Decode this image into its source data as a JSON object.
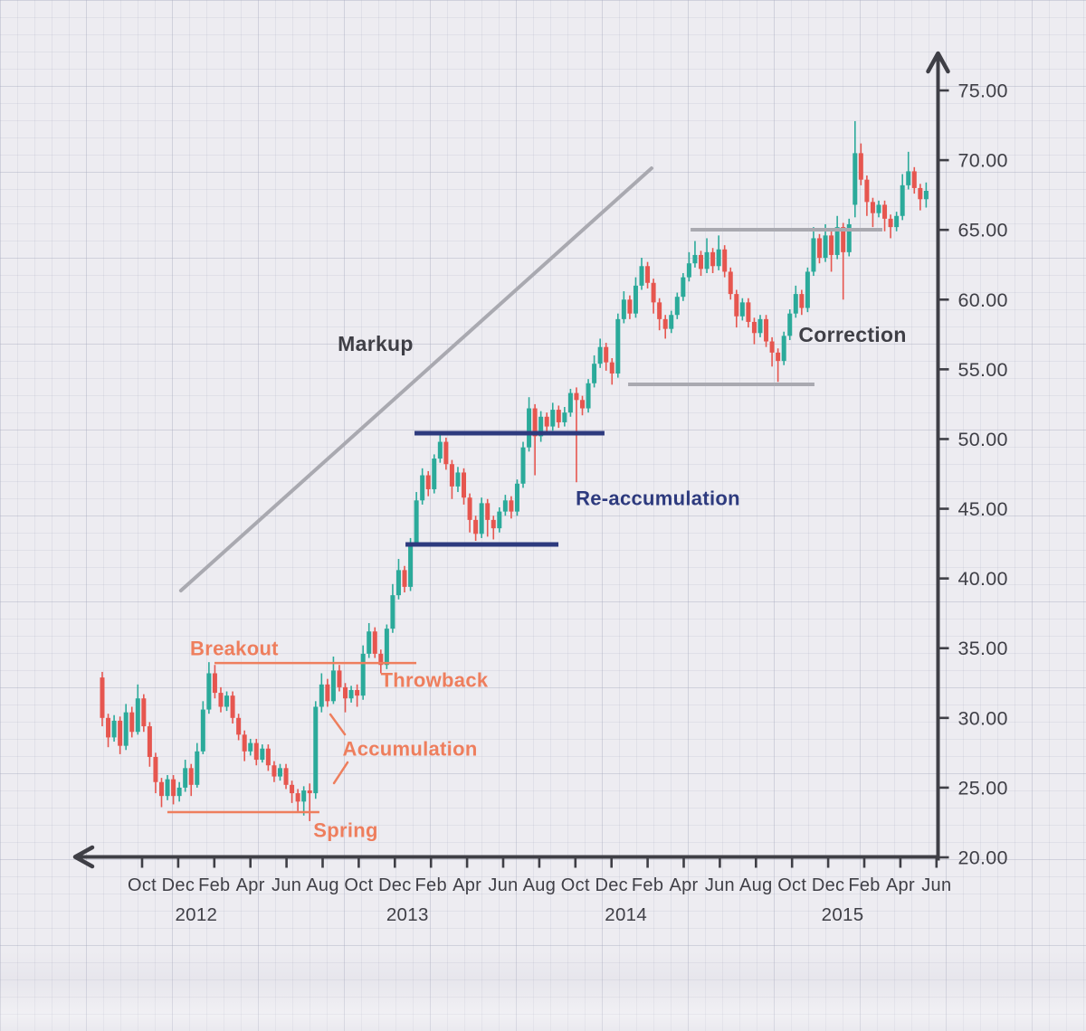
{
  "page": {
    "background_color": "#edecf1",
    "grid_color": "#acaec1",
    "axis_color": "#3f3f46"
  },
  "chart_data": {
    "type": "candlestick",
    "title": "",
    "colors": {
      "up_candle": "#2baa9a",
      "down_candle": "#e6564f",
      "orange": "#ee7e5d",
      "navy": "#2d3a7e",
      "gray": "#a9a9b0",
      "dark": "#3f3f46"
    },
    "y_axis": {
      "side": "right",
      "min": 20,
      "max": 75,
      "tick_step": 5,
      "tick_labels": [
        "75.00",
        "70.00",
        "65.00",
        "60.00",
        "55.00",
        "50.00",
        "45.00",
        "40.00",
        "35.00",
        "30.00",
        "25.00",
        "20.00"
      ],
      "arrow": "up-arrow-icon"
    },
    "x_axis": {
      "month_tick_labels": [
        "Oct",
        "Dec",
        "Feb",
        "Apr",
        "Jun",
        "Aug",
        "Oct",
        "Dec",
        "Feb",
        "Apr",
        "Jun",
        "Aug",
        "Oct",
        "Dec",
        "Feb",
        "Apr",
        "Jun",
        "Aug",
        "Oct",
        "Dec",
        "Feb",
        "Apr",
        "Jun"
      ],
      "tick_month_positions": [
        0,
        2,
        4,
        6,
        8,
        10,
        12,
        14,
        16,
        18,
        20,
        22,
        24,
        26,
        28,
        30,
        32,
        34,
        36,
        38,
        40,
        42,
        44
      ],
      "year_labels": [
        {
          "text": "2012",
          "month": 3.0
        },
        {
          "text": "2013",
          "month": 14.7
        },
        {
          "text": "2014",
          "month": 26.8
        },
        {
          "text": "2015",
          "month": 38.8
        }
      ],
      "arrow": "left-arrow-icon"
    },
    "annotations": [
      {
        "id": "markup",
        "text": "Markup",
        "month": 12.93,
        "price": 56.85,
        "color_key": "dark",
        "size": 23
      },
      {
        "id": "breakout",
        "text": "Breakout",
        "month": 5.11,
        "price": 34.98,
        "color_key": "orange",
        "size": 22
      },
      {
        "id": "throwback",
        "text": "Throwback",
        "month": 16.19,
        "price": 32.71,
        "color_key": "orange",
        "size": 22
      },
      {
        "id": "accumulation",
        "text": "Accumulation",
        "month": 14.84,
        "price": 27.78,
        "color_key": "orange",
        "size": 22
      },
      {
        "id": "spring",
        "text": "Spring",
        "month": 11.28,
        "price": 21.95,
        "color_key": "orange",
        "size": 22
      },
      {
        "id": "re-accumulation",
        "text": "Re-accumulation",
        "month": 28.57,
        "price": 45.75,
        "color_key": "navy",
        "size": 22
      },
      {
        "id": "correction",
        "text": "Correction",
        "month": 39.35,
        "price": 57.49,
        "color_key": "dark",
        "size": 23
      }
    ],
    "trend_lines": [
      {
        "name": "markup-trendline",
        "from": {
          "month": 2.15,
          "price": 39.13
        },
        "to": {
          "month": 28.22,
          "price": 69.42
        },
        "color_key": "gray",
        "width": 4
      }
    ],
    "horizontal_lines": [
      {
        "name": "breakout-resistance",
        "price": 33.94,
        "month_from": 4.01,
        "month_to": 15.19,
        "color_key": "orange",
        "width": 2.5
      },
      {
        "name": "spring-support",
        "price": 23.24,
        "month_from": 1.4,
        "month_to": 9.82,
        "color_key": "orange",
        "width": 2.5
      },
      {
        "name": "reaccumulation-resistance",
        "price": 50.42,
        "month_from": 15.09,
        "month_to": 25.61,
        "color_key": "navy",
        "width": 5
      },
      {
        "name": "reaccumulation-support",
        "price": 42.44,
        "month_from": 14.59,
        "month_to": 23.06,
        "color_key": "navy",
        "width": 5
      },
      {
        "name": "correction-resistance",
        "price": 65.01,
        "month_from": 30.38,
        "month_to": 41.0,
        "color_key": "gray",
        "width": 4
      },
      {
        "name": "correction-support",
        "price": 53.92,
        "month_from": 26.92,
        "month_to": 37.24,
        "color_key": "gray",
        "width": 4
      }
    ],
    "pointer_segments": [
      {
        "name": "accumulation-pointer-upper",
        "from": {
          "month": 10.43,
          "price": 30.25
        },
        "to": {
          "month": 11.23,
          "price": 28.82
        }
      },
      {
        "name": "accumulation-pointer-lower",
        "from": {
          "month": 10.63,
          "price": 25.32
        },
        "to": {
          "month": 11.38,
          "price": 26.81
        }
      }
    ],
    "candles_format": [
      "open",
      "high",
      "low",
      "close"
    ],
    "candles_start_month": -2.206,
    "candles_step_months": 0.3283,
    "candles": [
      [
        32.9,
        33.3,
        29.4,
        30.0
      ],
      [
        30.0,
        30.3,
        27.9,
        28.6
      ],
      [
        28.6,
        30.2,
        28.3,
        29.8
      ],
      [
        29.8,
        30.1,
        27.4,
        28.0
      ],
      [
        28.0,
        31.0,
        27.7,
        30.4
      ],
      [
        30.4,
        30.8,
        28.6,
        29.0
      ],
      [
        29.0,
        32.4,
        28.8,
        31.4
      ],
      [
        31.4,
        31.7,
        29.0,
        29.4
      ],
      [
        29.4,
        29.7,
        26.5,
        27.2
      ],
      [
        27.2,
        27.5,
        24.6,
        25.4
      ],
      [
        25.4,
        25.7,
        23.6,
        24.4
      ],
      [
        24.4,
        25.9,
        24.1,
        25.6
      ],
      [
        25.6,
        25.9,
        23.8,
        24.4
      ],
      [
        24.4,
        25.4,
        24.0,
        25.0
      ],
      [
        25.0,
        27.0,
        24.7,
        26.4
      ],
      [
        26.4,
        26.7,
        24.4,
        25.2
      ],
      [
        25.2,
        28.2,
        25.0,
        27.6
      ],
      [
        27.6,
        31.2,
        27.4,
        30.6
      ],
      [
        30.6,
        34.0,
        30.3,
        33.2
      ],
      [
        33.2,
        33.8,
        31.4,
        31.8
      ],
      [
        31.8,
        32.2,
        30.4,
        30.8
      ],
      [
        30.8,
        31.9,
        30.5,
        31.6
      ],
      [
        31.6,
        31.9,
        29.6,
        30.0
      ],
      [
        30.0,
        30.3,
        28.4,
        28.8
      ],
      [
        28.8,
        29.1,
        26.9,
        27.6
      ],
      [
        27.6,
        28.5,
        27.3,
        28.2
      ],
      [
        28.2,
        28.5,
        26.6,
        27.0
      ],
      [
        27.0,
        28.1,
        26.8,
        27.8
      ],
      [
        27.8,
        28.1,
        26.2,
        26.6
      ],
      [
        26.6,
        26.9,
        25.4,
        25.8
      ],
      [
        25.8,
        26.7,
        25.5,
        26.4
      ],
      [
        26.4,
        26.7,
        24.9,
        25.2
      ],
      [
        25.2,
        25.5,
        23.9,
        24.6
      ],
      [
        24.6,
        24.9,
        23.3,
        24.0
      ],
      [
        24.0,
        25.1,
        23.0,
        24.8
      ],
      [
        24.8,
        25.3,
        22.6,
        24.6
      ],
      [
        24.6,
        31.2,
        24.2,
        30.8
      ],
      [
        30.8,
        33.2,
        30.4,
        32.4
      ],
      [
        32.4,
        32.8,
        30.8,
        31.2
      ],
      [
        31.2,
        34.4,
        31.0,
        33.4
      ],
      [
        33.4,
        33.8,
        31.9,
        32.2
      ],
      [
        32.2,
        32.5,
        30.4,
        31.4
      ],
      [
        31.4,
        32.3,
        31.1,
        32.0
      ],
      [
        32.0,
        32.4,
        30.8,
        31.6
      ],
      [
        31.6,
        35.2,
        31.3,
        34.6
      ],
      [
        34.6,
        36.8,
        34.3,
        36.2
      ],
      [
        36.2,
        36.5,
        34.3,
        34.6
      ],
      [
        34.6,
        34.9,
        33.2,
        33.8
      ],
      [
        33.8,
        36.7,
        33.5,
        36.4
      ],
      [
        36.4,
        39.6,
        36.1,
        38.8
      ],
      [
        38.8,
        41.4,
        38.5,
        40.6
      ],
      [
        40.6,
        40.9,
        39.0,
        39.4
      ],
      [
        39.4,
        42.9,
        39.1,
        42.6
      ],
      [
        42.6,
        46.2,
        42.3,
        45.6
      ],
      [
        45.6,
        47.9,
        45.3,
        47.4
      ],
      [
        47.4,
        47.7,
        45.9,
        46.4
      ],
      [
        46.4,
        48.9,
        46.1,
        48.6
      ],
      [
        48.6,
        50.4,
        48.3,
        49.8
      ],
      [
        49.8,
        50.1,
        47.8,
        48.2
      ],
      [
        48.2,
        48.5,
        45.7,
        46.6
      ],
      [
        46.6,
        48.0,
        46.2,
        47.6
      ],
      [
        47.6,
        47.9,
        45.3,
        45.8
      ],
      [
        45.8,
        46.1,
        43.3,
        44.2
      ],
      [
        44.2,
        44.5,
        42.7,
        43.2
      ],
      [
        43.2,
        45.8,
        42.9,
        45.4
      ],
      [
        45.4,
        45.7,
        43.0,
        44.2
      ],
      [
        44.2,
        44.5,
        42.8,
        43.6
      ],
      [
        43.6,
        45.1,
        43.3,
        44.8
      ],
      [
        44.8,
        46.0,
        44.5,
        45.6
      ],
      [
        45.6,
        45.9,
        44.3,
        44.8
      ],
      [
        44.8,
        47.1,
        44.5,
        46.8
      ],
      [
        46.8,
        49.8,
        46.5,
        49.4
      ],
      [
        49.4,
        53.0,
        49.1,
        52.2
      ],
      [
        52.2,
        52.5,
        47.4,
        50.2
      ],
      [
        50.2,
        52.0,
        49.8,
        51.6
      ],
      [
        51.6,
        51.9,
        50.3,
        50.9
      ],
      [
        50.9,
        52.6,
        50.6,
        52.1
      ],
      [
        52.1,
        52.4,
        50.8,
        51.2
      ],
      [
        51.2,
        52.3,
        50.9,
        51.9
      ],
      [
        51.9,
        53.6,
        51.6,
        53.3
      ],
      [
        53.3,
        53.7,
        46.9,
        52.8
      ],
      [
        52.8,
        53.1,
        51.7,
        52.2
      ],
      [
        52.2,
        54.3,
        51.9,
        54.0
      ],
      [
        54.0,
        56.0,
        53.7,
        55.4
      ],
      [
        55.4,
        57.2,
        55.1,
        56.6
      ],
      [
        56.6,
        56.9,
        54.9,
        55.5
      ],
      [
        55.5,
        55.8,
        53.9,
        54.7
      ],
      [
        54.7,
        59.0,
        54.4,
        58.6
      ],
      [
        58.6,
        60.6,
        58.3,
        60.0
      ],
      [
        60.0,
        60.3,
        58.6,
        59.0
      ],
      [
        59.0,
        61.6,
        58.7,
        61.0
      ],
      [
        61.0,
        63.0,
        60.7,
        62.4
      ],
      [
        62.4,
        62.7,
        60.8,
        61.2
      ],
      [
        61.2,
        61.5,
        59.0,
        59.8
      ],
      [
        59.8,
        60.1,
        57.8,
        58.6
      ],
      [
        58.6,
        58.9,
        57.2,
        57.9
      ],
      [
        57.9,
        59.2,
        57.6,
        58.9
      ],
      [
        58.9,
        60.5,
        58.6,
        60.2
      ],
      [
        60.2,
        61.9,
        59.9,
        61.6
      ],
      [
        61.6,
        63.4,
        61.3,
        62.6
      ],
      [
        62.6,
        64.2,
        62.3,
        63.2
      ],
      [
        63.2,
        63.5,
        61.7,
        62.2
      ],
      [
        62.2,
        64.4,
        61.9,
        63.4
      ],
      [
        63.4,
        63.7,
        61.9,
        62.4
      ],
      [
        62.4,
        64.6,
        62.1,
        63.6
      ],
      [
        63.6,
        63.9,
        61.6,
        62.0
      ],
      [
        62.0,
        62.3,
        60.0,
        60.4
      ],
      [
        60.4,
        60.7,
        58.0,
        58.8
      ],
      [
        58.8,
        60.1,
        58.5,
        59.8
      ],
      [
        59.8,
        60.1,
        58.0,
        58.4
      ],
      [
        58.4,
        58.7,
        56.8,
        57.6
      ],
      [
        57.6,
        58.9,
        57.3,
        58.6
      ],
      [
        58.6,
        58.9,
        56.6,
        57.0
      ],
      [
        57.0,
        57.3,
        55.2,
        56.2
      ],
      [
        56.2,
        56.5,
        54.1,
        55.6
      ],
      [
        55.6,
        57.7,
        55.3,
        57.4
      ],
      [
        57.4,
        59.3,
        57.1,
        59.0
      ],
      [
        59.0,
        61.0,
        58.7,
        60.4
      ],
      [
        60.4,
        60.7,
        58.9,
        59.4
      ],
      [
        59.4,
        62.3,
        59.1,
        62.0
      ],
      [
        62.0,
        65.2,
        61.7,
        64.4
      ],
      [
        64.4,
        64.7,
        62.6,
        63.0
      ],
      [
        63.0,
        65.4,
        62.7,
        64.6
      ],
      [
        64.6,
        64.9,
        62.0,
        63.2
      ],
      [
        63.2,
        66.0,
        62.9,
        65.2
      ],
      [
        65.2,
        65.5,
        60.0,
        63.4
      ],
      [
        63.4,
        65.8,
        63.1,
        65.4
      ],
      [
        66.8,
        72.8,
        65.9,
        70.5
      ],
      [
        70.5,
        71.2,
        68.2,
        68.6
      ],
      [
        68.6,
        68.9,
        66.0,
        67.0
      ],
      [
        67.0,
        67.3,
        65.2,
        66.2
      ],
      [
        66.2,
        67.1,
        65.9,
        66.8
      ],
      [
        66.8,
        67.1,
        64.9,
        65.8
      ],
      [
        65.8,
        66.1,
        64.4,
        65.2
      ],
      [
        65.2,
        66.3,
        64.9,
        66.0
      ],
      [
        66.0,
        69.0,
        65.7,
        68.2
      ],
      [
        68.2,
        70.6,
        67.9,
        69.2
      ],
      [
        69.2,
        69.5,
        67.6,
        68.0
      ],
      [
        68.0,
        68.3,
        66.4,
        67.2
      ],
      [
        67.2,
        68.4,
        66.6,
        67.8
      ]
    ]
  }
}
